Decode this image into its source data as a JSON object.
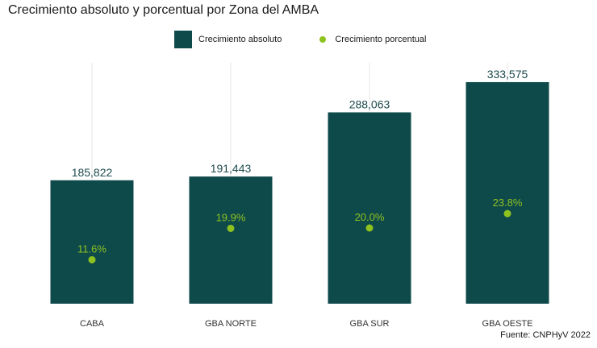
{
  "chart_data": {
    "type": "bar",
    "title": "Crecimiento absoluto y porcentual por Zona del AMBA",
    "categories": [
      "CABA",
      "GBA NORTE",
      "GBA SUR",
      "GBA OESTE"
    ],
    "series": [
      {
        "name": "Crecimiento absoluto",
        "values": [
          185822,
          191443,
          288063,
          333575
        ],
        "labels": [
          "185,822",
          "191,443",
          "288,063",
          "333,575"
        ],
        "color": "#0f4a4b"
      },
      {
        "name": "Crecimiento porcentual",
        "values": [
          11.6,
          19.9,
          20.0,
          23.8
        ],
        "labels": [
          "11.6%",
          "19.9%",
          "20.0%",
          "23.8%"
        ],
        "color": "#8dc21f"
      }
    ],
    "ylim": [
      0,
      342000
    ],
    "percent_ylim": [
      0,
      60
    ],
    "grid": "vertical",
    "legend": "top",
    "xlabel": "",
    "ylabel": "",
    "caption": "Fuente: CNPHyV 2022"
  }
}
